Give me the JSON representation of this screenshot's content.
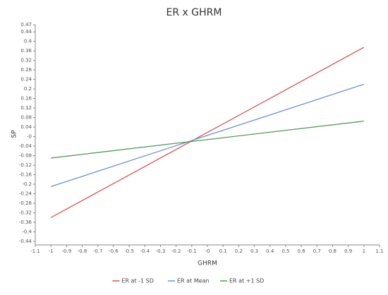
{
  "chart_data": {
    "type": "line",
    "title": "ER x GHRM",
    "x_label": "GHRM",
    "y_label": "SP",
    "x": [
      -1,
      1
    ],
    "series": [
      {
        "name": "ER at -1 SD",
        "color": "#d9534f",
        "values": [
          -0.34,
          0.375
        ]
      },
      {
        "name": "ER at Mean",
        "color": "#6b8fd6",
        "values": [
          -0.21,
          0.22
        ]
      },
      {
        "name": "ER at +1 SD",
        "color": "#4f9a5c",
        "values": [
          -0.09,
          0.065
        ]
      }
    ],
    "xlim": [
      -1.1,
      1.1
    ],
    "xticks": [
      -1.1,
      -1,
      -0.9,
      -0.8,
      -0.7,
      -0.6,
      -0.5,
      -0.4,
      -0.3,
      -0.2,
      -0.1,
      {
        "value": 0,
        "label": "-0"
      },
      0.1,
      0.2,
      0.3,
      0.4,
      0.5,
      0.6,
      0.7,
      0.8,
      0.9,
      1,
      1.1
    ],
    "ylim": [
      -0.44,
      0.47
    ],
    "yticks": [
      0.47,
      0.44,
      0.4,
      0.36,
      0.32,
      0.28,
      0.24,
      0.2,
      0.16,
      0.12,
      0.08,
      0.04,
      {
        "value": 0,
        "label": "-0"
      },
      -0.04,
      -0.08,
      -0.12,
      -0.16,
      -0.2,
      -0.24,
      -0.28,
      -0.32,
      -0.36,
      -0.4,
      -0.44
    ],
    "grid": false,
    "legend": "bottom"
  }
}
